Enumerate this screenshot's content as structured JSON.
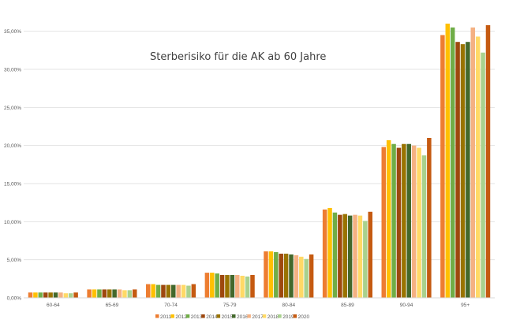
{
  "chart_data": {
    "type": "bar",
    "title": "Sterberisiko für die AK ab 60 Jahre",
    "xlabel": "",
    "ylabel": "",
    "ylim": [
      0,
      36
    ],
    "yticks": [
      "0,00%",
      "5,00%",
      "10,00%",
      "15,00%",
      "20,00%",
      "25,00%",
      "30,00%",
      "35,00%"
    ],
    "categories": [
      "60-64",
      "65-69",
      "70-74",
      "75-79",
      "80-84",
      "85-89",
      "90-94",
      "95+"
    ],
    "grid": true,
    "legend_position": "bottom",
    "series": [
      {
        "name": "2011",
        "color": "#ed7d31",
        "values": [
          0.7,
          1.1,
          1.8,
          3.3,
          6.1,
          11.6,
          19.8,
          34.5
        ]
      },
      {
        "name": "2012",
        "color": "#ffc000",
        "values": [
          0.7,
          1.1,
          1.8,
          3.3,
          6.1,
          11.8,
          20.7,
          36.0
        ]
      },
      {
        "name": "2013",
        "color": "#70ad47",
        "values": [
          0.7,
          1.1,
          1.7,
          3.2,
          6.0,
          11.2,
          20.2,
          35.5
        ]
      },
      {
        "name": "2014",
        "color": "#9e480e",
        "values": [
          0.7,
          1.1,
          1.7,
          3.0,
          5.8,
          10.9,
          19.7,
          33.6
        ]
      },
      {
        "name": "2015",
        "color": "#997300",
        "values": [
          0.7,
          1.1,
          1.7,
          3.0,
          5.8,
          11.0,
          20.2,
          33.3
        ]
      },
      {
        "name": "2016",
        "color": "#43682b",
        "values": [
          0.7,
          1.1,
          1.7,
          3.0,
          5.7,
          10.8,
          20.2,
          33.6
        ]
      },
      {
        "name": "2017",
        "color": "#f4b183",
        "values": [
          0.7,
          1.1,
          1.7,
          3.0,
          5.6,
          10.9,
          20.0,
          35.5
        ]
      },
      {
        "name": "2018",
        "color": "#ffd966",
        "values": [
          0.6,
          1.0,
          1.7,
          2.9,
          5.4,
          10.8,
          19.7,
          34.3
        ]
      },
      {
        "name": "2019",
        "color": "#a9d18e",
        "values": [
          0.6,
          1.0,
          1.6,
          2.8,
          5.1,
          10.1,
          18.7,
          32.2
        ]
      },
      {
        "name": "2020",
        "color": "#c55a11",
        "values": [
          0.7,
          1.1,
          1.8,
          3.0,
          5.7,
          11.3,
          21.0,
          35.8
        ]
      }
    ]
  }
}
